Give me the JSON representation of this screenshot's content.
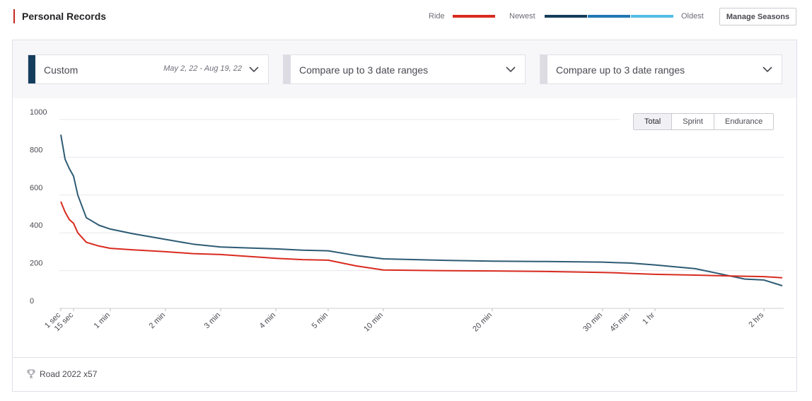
{
  "header": {
    "title": "Personal Records",
    "legend": {
      "ride_label": "Ride",
      "ride_color": "#d92b1f",
      "newest_label": "Newest",
      "oldest_label": "Oldest",
      "gradient_colors": [
        "#163c5a",
        "#2177b4",
        "#56bde6"
      ]
    },
    "manage_button": "Manage Seasons"
  },
  "filters": [
    {
      "label": "Custom",
      "date_range": "May 2, 22 - Aug 19, 22",
      "accent_color": "#153e5c",
      "icon": "chevron-down-icon"
    },
    {
      "label": "Compare up to 3 date ranges",
      "date_range": "",
      "accent_color": "#dcdce2",
      "icon": "chevron-down-icon"
    },
    {
      "label": "Compare up to 3 date ranges",
      "date_range": "",
      "accent_color": "#dcdce2",
      "icon": "chevron-down-icon"
    }
  ],
  "segmented": {
    "options": [
      "Total",
      "Sprint",
      "Endurance"
    ],
    "selected": "Total"
  },
  "footer": {
    "icon": "trophy-icon",
    "text": "Road 2022 x57"
  },
  "chart_data": {
    "type": "line",
    "xlabel": "",
    "ylabel": "",
    "ylim": [
      0,
      1000
    ],
    "yticks": [
      0,
      200,
      400,
      600,
      800,
      1000
    ],
    "xticks": [
      "1 sec",
      "15 sec",
      "1 min",
      "2 min",
      "3 min",
      "4 min",
      "5 min",
      "10 min",
      "20 min",
      "30 min",
      "45 min",
      "1 hr",
      "2 hrs"
    ],
    "grid": "horizontal",
    "series": [
      {
        "color": "#2d5b74",
        "points": [
          [
            "1 sec",
            920
          ],
          [
            "5 sec",
            790
          ],
          [
            "10 sec",
            740
          ],
          [
            "15 sec",
            700
          ],
          [
            "20 sec",
            600
          ],
          [
            "30 sec",
            480
          ],
          [
            "45 sec",
            440
          ],
          [
            "1 min",
            420
          ],
          [
            "1.5 min",
            395
          ],
          [
            "2 min",
            365
          ],
          [
            "2.5 min",
            340
          ],
          [
            "3 min",
            325
          ],
          [
            "3.5 min",
            320
          ],
          [
            "4 min",
            315
          ],
          [
            "4.5 min",
            308
          ],
          [
            "5 min",
            305
          ],
          [
            "7 min",
            280
          ],
          [
            "10 min",
            262
          ],
          [
            "15 min",
            255
          ],
          [
            "20 min",
            250
          ],
          [
            "25 min",
            248
          ],
          [
            "30 min",
            245
          ],
          [
            "40 min",
            242
          ],
          [
            "45 min",
            240
          ],
          [
            "1 hr",
            230
          ],
          [
            "1.25 hr",
            210
          ],
          [
            "1.5 hr",
            175
          ],
          [
            "1.75 hr",
            155
          ],
          [
            "2 hrs",
            150
          ],
          [
            "2.25 hrs",
            120
          ]
        ]
      },
      {
        "name": "Ride",
        "color": "#d92b1f",
        "points": [
          [
            "1 sec",
            565
          ],
          [
            "5 sec",
            510
          ],
          [
            "10 sec",
            470
          ],
          [
            "15 sec",
            450
          ],
          [
            "20 sec",
            400
          ],
          [
            "30 sec",
            350
          ],
          [
            "45 sec",
            330
          ],
          [
            "1 min",
            318
          ],
          [
            "1.5 min",
            310
          ],
          [
            "2 min",
            300
          ],
          [
            "2.5 min",
            290
          ],
          [
            "3 min",
            285
          ],
          [
            "3.5 min",
            275
          ],
          [
            "4 min",
            265
          ],
          [
            "4.5 min",
            258
          ],
          [
            "5 min",
            255
          ],
          [
            "7 min",
            225
          ],
          [
            "10 min",
            203
          ],
          [
            "15 min",
            200
          ],
          [
            "20 min",
            198
          ],
          [
            "25 min",
            195
          ],
          [
            "30 min",
            190
          ],
          [
            "40 min",
            188
          ],
          [
            "45 min",
            185
          ],
          [
            "1 hr",
            180
          ],
          [
            "1.25 hr",
            176
          ],
          [
            "1.5 hr",
            172
          ],
          [
            "1.75 hr",
            170
          ],
          [
            "2 hrs",
            168
          ],
          [
            "2.25 hrs",
            162
          ]
        ]
      }
    ]
  }
}
